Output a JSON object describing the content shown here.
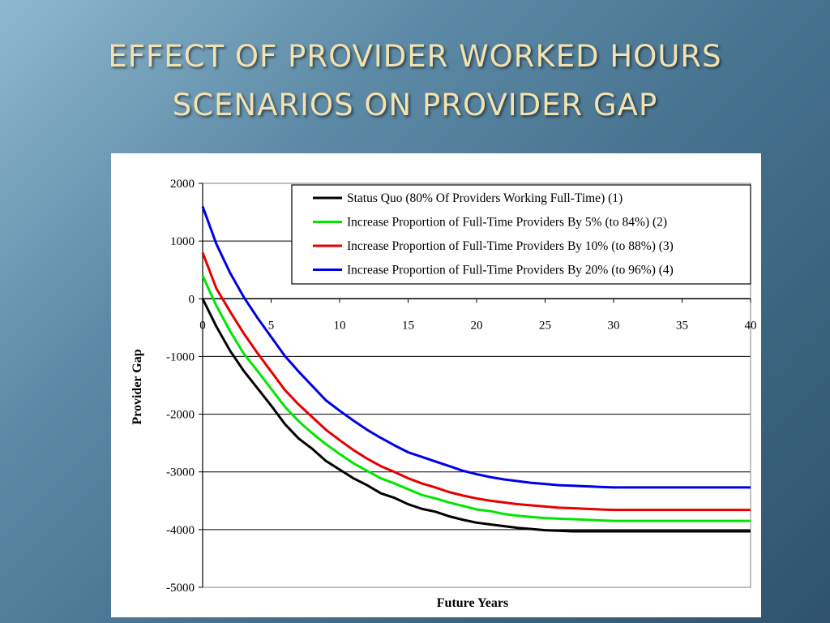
{
  "slide": {
    "title_line1": "EFFECT OF PROVIDER WORKED HOURS",
    "title_line2": "SCENARIOS ON PROVIDER GAP"
  },
  "chart_data": {
    "type": "line",
    "title": "",
    "xlabel": "Future Years",
    "ylabel": "Provider Gap",
    "xlim": [
      0,
      40
    ],
    "ylim": [
      -5000,
      2000
    ],
    "xticks": [
      0,
      5,
      10,
      15,
      20,
      25,
      30,
      35,
      40
    ],
    "yticks": [
      2000,
      1000,
      0,
      -1000,
      -2000,
      -3000,
      -4000,
      -5000
    ],
    "grid": "horizontal",
    "legend_position": "top-right",
    "x": [
      0,
      1,
      2,
      3,
      4,
      5,
      6,
      7,
      8,
      9,
      10,
      11,
      12,
      13,
      14,
      15,
      16,
      17,
      18,
      19,
      20,
      21,
      22,
      23,
      24,
      25,
      26,
      27,
      28,
      29,
      30,
      31,
      32,
      33,
      34,
      35,
      36,
      37,
      38,
      39,
      40
    ],
    "series": [
      {
        "name": "Status Quo (80% Of Providers Working Full-Time) (1)",
        "color": "#000000",
        "values": [
          0,
          -480,
          -900,
          -1250,
          -1550,
          -1850,
          -2170,
          -2420,
          -2600,
          -2810,
          -2960,
          -3110,
          -3230,
          -3370,
          -3450,
          -3560,
          -3640,
          -3690,
          -3770,
          -3830,
          -3880,
          -3910,
          -3940,
          -3970,
          -3990,
          -4010,
          -4020,
          -4030,
          -4030,
          -4030,
          -4030,
          -4030,
          -4030,
          -4030,
          -4030,
          -4030,
          -4030,
          -4030,
          -4030,
          -4030,
          -4030
        ]
      },
      {
        "name": "Increase Proportion of Full-Time Providers By 5% (to 84%) (2)",
        "color": "#00e600",
        "values": [
          400,
          -120,
          -560,
          -950,
          -1250,
          -1560,
          -1870,
          -2120,
          -2330,
          -2520,
          -2690,
          -2850,
          -2980,
          -3110,
          -3200,
          -3300,
          -3400,
          -3460,
          -3530,
          -3590,
          -3650,
          -3680,
          -3730,
          -3760,
          -3780,
          -3800,
          -3810,
          -3820,
          -3830,
          -3840,
          -3850,
          -3850,
          -3850,
          -3850,
          -3850,
          -3850,
          -3850,
          -3850,
          -3850,
          -3850,
          -3850
        ]
      },
      {
        "name": "Increase Proportion of Full-Time Providers By 10% (to 88%) (3)",
        "color": "#e60000",
        "values": [
          800,
          180,
          -220,
          -600,
          -940,
          -1260,
          -1580,
          -1830,
          -2050,
          -2270,
          -2450,
          -2620,
          -2770,
          -2900,
          -3000,
          -3110,
          -3200,
          -3270,
          -3350,
          -3410,
          -3460,
          -3500,
          -3530,
          -3560,
          -3580,
          -3600,
          -3620,
          -3630,
          -3640,
          -3650,
          -3660,
          -3660,
          -3660,
          -3660,
          -3660,
          -3660,
          -3660,
          -3660,
          -3660,
          -3660,
          -3660
        ]
      },
      {
        "name": "Increase Proportion of Full-Time Providers By 20% (to 96%) (4)",
        "color": "#0000e6",
        "values": [
          1600,
          950,
          450,
          30,
          -330,
          -660,
          -990,
          -1260,
          -1510,
          -1760,
          -1940,
          -2110,
          -2270,
          -2410,
          -2540,
          -2660,
          -2740,
          -2820,
          -2900,
          -2980,
          -3040,
          -3090,
          -3130,
          -3160,
          -3190,
          -3210,
          -3230,
          -3240,
          -3250,
          -3260,
          -3270,
          -3270,
          -3270,
          -3270,
          -3270,
          -3270,
          -3270,
          -3270,
          -3270,
          -3270,
          -3270
        ]
      }
    ]
  }
}
